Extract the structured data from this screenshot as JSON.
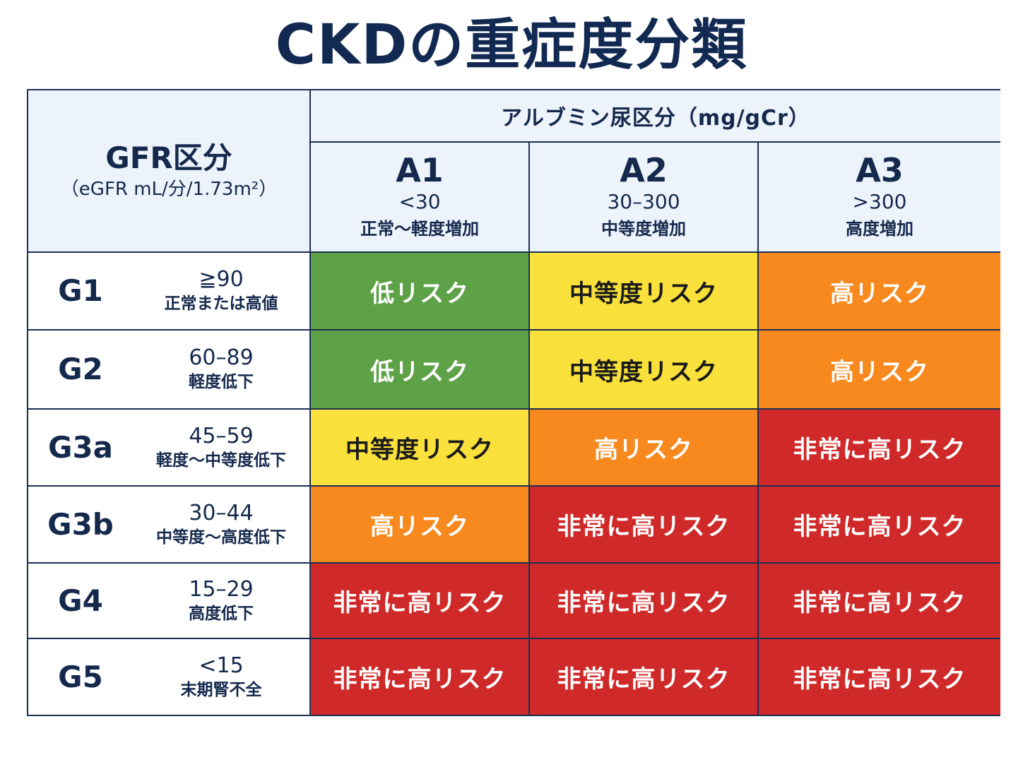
{
  "title": "CKDの重症度分類",
  "header": {
    "gfr_title": "GFR区分",
    "gfr_unit": "（eGFR mL/分/1.73m²）",
    "albumin_title": "アルブミン尿区分（mg/gCr）",
    "columns": [
      {
        "code": "A1",
        "range": "<30",
        "desc": "正常～軽度増加"
      },
      {
        "code": "A2",
        "range": "30–300",
        "desc": "中等度増加"
      },
      {
        "code": "A3",
        "range": ">300",
        "desc": "高度増加"
      }
    ]
  },
  "rows": [
    {
      "code": "G1",
      "range": "≧90",
      "desc": "正常または高値",
      "cells": [
        "低リスク",
        "中等度リスク",
        "高リスク"
      ]
    },
    {
      "code": "G2",
      "range": "60–89",
      "desc": "軽度低下",
      "cells": [
        "低リスク",
        "中等度リスク",
        "高リスク"
      ]
    },
    {
      "code": "G3a",
      "range": "45–59",
      "desc": "軽度～中等度低下",
      "cells": [
        "中等度リスク",
        "高リスク",
        "非常に高リスク"
      ]
    },
    {
      "code": "G3b",
      "range": "30–44",
      "desc": "中等度～高度低下",
      "cells": [
        "高リスク",
        "非常に高リスク",
        "非常に高リスク"
      ]
    },
    {
      "code": "G4",
      "range": "15–29",
      "desc": "高度低下",
      "cells": [
        "非常に高リスク",
        "非常に高リスク",
        "非常に高リスク"
      ]
    },
    {
      "code": "G5",
      "range": "<15",
      "desc": "末期腎不全",
      "cells": [
        "非常に高リスク",
        "非常に高リスク",
        "非常に高リスク"
      ]
    }
  ],
  "risk_colors": {
    "低リスク": "#5ea247",
    "中等度リスク": "#f9e03a",
    "高リスク": "#f7891e",
    "非常に高リスク": "#cf2a29"
  }
}
